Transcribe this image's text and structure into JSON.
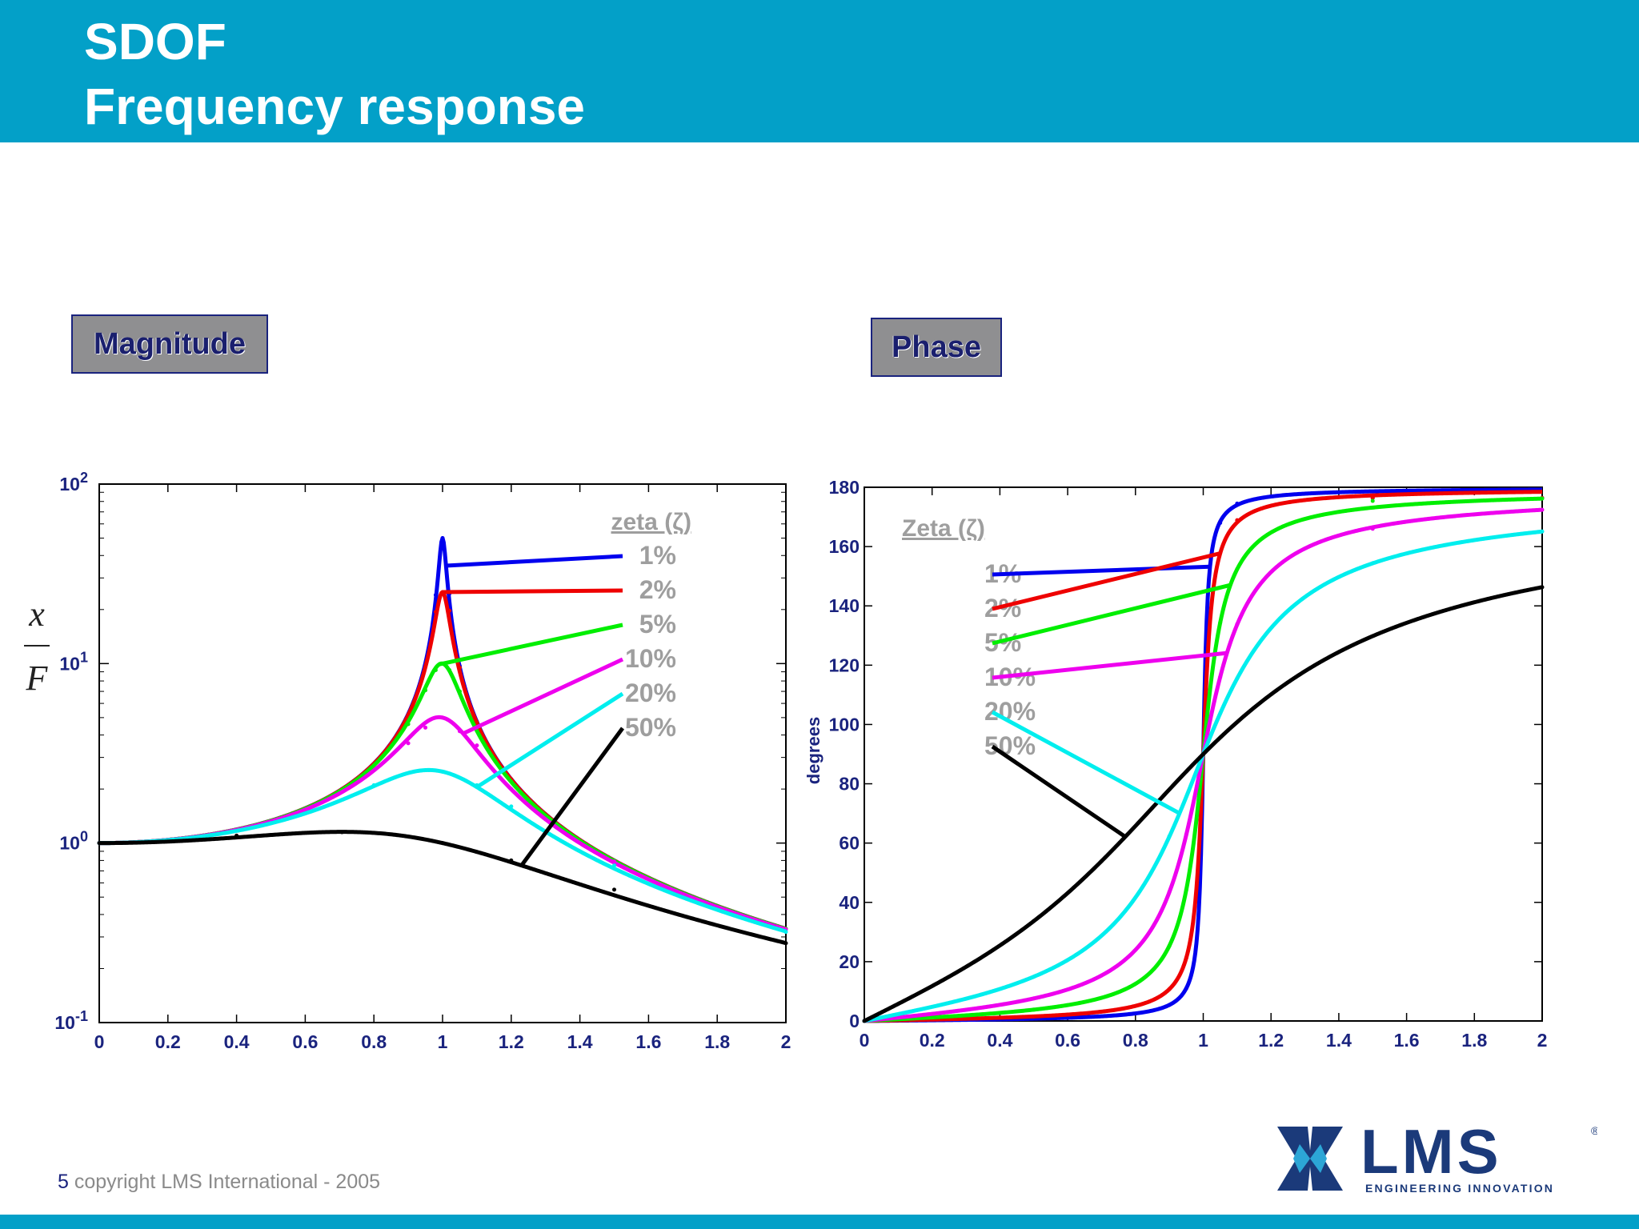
{
  "header": {
    "title_line1": "SDOF",
    "title_line2": "Frequency response",
    "background_color": "#03A0C8"
  },
  "panels": {
    "magnitude_label": "Magnitude",
    "phase_label": "Phase"
  },
  "footer": {
    "page_number": "5",
    "copyright": "copyright LMS International - 2005"
  },
  "logo": {
    "text": "LMS",
    "tagline": "ENGINEERING INNOVATION",
    "registered_mark": "®",
    "brand_color": "#1B3A7A"
  },
  "chart_data": [
    {
      "type": "line",
      "name": "magnitude",
      "ylabel_numerator": "x",
      "ylabel_denominator": "F",
      "yscale": "log",
      "xlim": [
        0,
        2
      ],
      "ylim": [
        0.1,
        100
      ],
      "x_ticks": [
        "0",
        "0.2",
        "0.4",
        "0.6",
        "0.8",
        "1",
        "1.2",
        "1.4",
        "1.6",
        "1.8",
        "2"
      ],
      "y_ticks": [
        {
          "base": "10",
          "exp": "-1"
        },
        {
          "base": "10",
          "exp": "0"
        },
        {
          "base": "10",
          "exp": "1"
        },
        {
          "base": "10",
          "exp": "2"
        }
      ],
      "legend_title": "zeta (ζ)",
      "series": [
        {
          "name": "1%",
          "zeta": 0.01,
          "color": "#0000EE",
          "x": [
            0,
            0.5,
            0.9,
            0.95,
            0.98,
            1.0,
            1.02,
            1.05,
            1.1,
            1.2,
            1.5,
            2
          ],
          "y": [
            1.0,
            1.33,
            5.2,
            9.9,
            24.1,
            50.0,
            24.5,
            9.7,
            4.74,
            2.27,
            0.8,
            0.333
          ]
        },
        {
          "name": "2%",
          "zeta": 0.02,
          "color": "#EE0000",
          "x": [
            0,
            0.5,
            0.9,
            0.95,
            0.98,
            1.0,
            1.02,
            1.05,
            1.1,
            1.2,
            1.5,
            2
          ],
          "y": [
            1.0,
            1.33,
            5.2,
            9.6,
            19.4,
            25.0,
            19.7,
            9.5,
            4.7,
            2.27,
            0.8,
            0.333
          ]
        },
        {
          "name": "5%",
          "zeta": 0.05,
          "color": "#00EE00",
          "x": [
            0,
            0.5,
            0.9,
            0.95,
            0.98,
            1.0,
            1.02,
            1.05,
            1.1,
            1.2,
            1.5,
            2
          ],
          "y": [
            1.0,
            1.33,
            4.6,
            7.1,
            9.2,
            10.0,
            9.2,
            7.0,
            4.4,
            2.2,
            0.8,
            0.333
          ]
        },
        {
          "name": "10%",
          "zeta": 0.1,
          "color": "#EE00EE",
          "x": [
            0,
            0.5,
            0.9,
            0.95,
            1.0,
            1.05,
            1.1,
            1.2,
            1.5,
            2
          ],
          "y": [
            1.0,
            1.32,
            3.6,
            4.4,
            5.0,
            4.2,
            3.5,
            2.0,
            0.79,
            0.33
          ]
        },
        {
          "name": "20%",
          "zeta": 0.2,
          "color": "#00EEEE",
          "x": [
            0,
            0.5,
            0.8,
            0.96,
            1.0,
            1.1,
            1.2,
            1.5,
            2
          ],
          "y": [
            1.0,
            1.29,
            2.1,
            2.55,
            2.5,
            2.1,
            1.6,
            0.75,
            0.32
          ]
        },
        {
          "name": "50%",
          "zeta": 0.5,
          "color": "#000000",
          "x": [
            0,
            0.4,
            0.707,
            1.0,
            1.2,
            1.5,
            2
          ],
          "y": [
            1.0,
            1.1,
            1.15,
            1.0,
            0.8,
            0.55,
            0.277
          ]
        }
      ]
    },
    {
      "type": "line",
      "name": "phase",
      "ylabel": "degrees",
      "xlim": [
        0,
        2
      ],
      "ylim": [
        0,
        180
      ],
      "x_ticks": [
        "0",
        "0.2",
        "0.4",
        "0.6",
        "0.8",
        "1",
        "1.2",
        "1.4",
        "1.6",
        "1.8",
        "2"
      ],
      "y_ticks": [
        "0",
        "20",
        "40",
        "60",
        "80",
        "100",
        "120",
        "140",
        "160",
        "180"
      ],
      "legend_title": "Zeta (ζ)",
      "series": [
        {
          "name": "1%",
          "zeta": 0.01,
          "color": "#0000EE",
          "x": [
            0,
            0.5,
            0.9,
            0.95,
            1.0,
            1.05,
            1.1,
            1.5,
            2
          ],
          "y": [
            0,
            0.8,
            5.4,
            11.0,
            90,
            168.0,
            174.5,
            179.2,
            179.6
          ]
        },
        {
          "name": "2%",
          "zeta": 0.02,
          "color": "#EE0000",
          "x": [
            0,
            0.5,
            0.9,
            0.95,
            1.0,
            1.05,
            1.1,
            1.5,
            2
          ],
          "y": [
            0,
            1.5,
            10.7,
            21.3,
            90,
            157.8,
            168.9,
            178.2,
            178.6
          ]
        },
        {
          "name": "5%",
          "zeta": 0.05,
          "color": "#00EE00",
          "x": [
            0,
            0.5,
            0.9,
            0.95,
            1.0,
            1.05,
            1.1,
            1.5,
            2
          ],
          "y": [
            0,
            3.8,
            25.3,
            44.3,
            90,
            134.3,
            152.4,
            175.4,
            176.2
          ]
        },
        {
          "name": "10%",
          "zeta": 0.1,
          "color": "#EE00EE",
          "x": [
            0,
            0.5,
            0.9,
            0.95,
            1.0,
            1.05,
            1.1,
            1.5,
            2
          ],
          "y": [
            0,
            7.6,
            43.5,
            62.9,
            90,
            116.0,
            133.8,
            166.0,
            172.4
          ]
        },
        {
          "name": "20%",
          "zeta": 0.2,
          "color": "#00EEEE",
          "x": [
            0,
            0.5,
            0.9,
            1.0,
            1.1,
            1.5,
            2
          ],
          "y": [
            0,
            14.9,
            62.3,
            90,
            115.5,
            154.4,
            165.1
          ]
        },
        {
          "name": "50%",
          "zeta": 0.5,
          "color": "#000000",
          "x": [
            0,
            0.5,
            1.0,
            1.5,
            2
          ],
          "y": [
            0,
            33.7,
            90,
            129.8,
            146.3
          ]
        }
      ]
    }
  ]
}
